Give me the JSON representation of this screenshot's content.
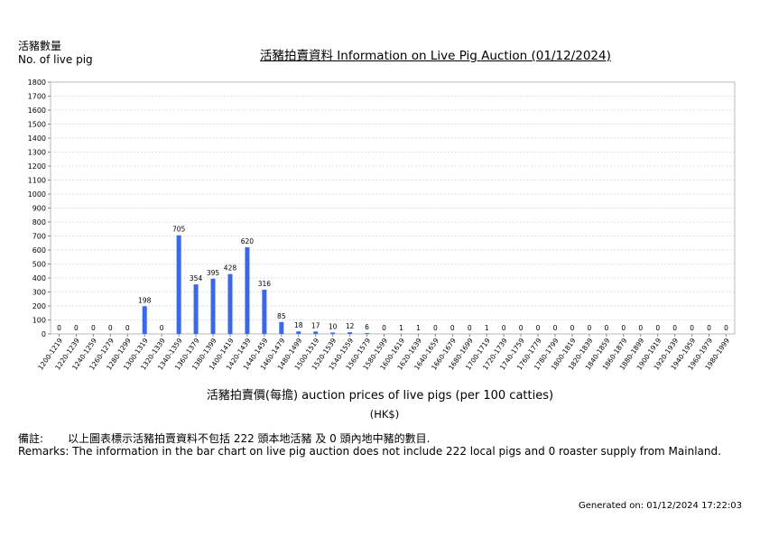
{
  "page": {
    "ylabel_zh": "活豬數量",
    "ylabel_en": "No. of live pig",
    "title": "活豬拍賣資料 Information on Live Pig Auction (01/12/2024)",
    "xlabel": "活豬拍賣價(每擔) auction prices of live pigs (per 100 catties)",
    "unit": "(HK$)",
    "remarks_zh_head": "備註:",
    "remarks_zh": "以上圖表標示活豬拍賣資料不包括 222 頭本地活豬 及 0 頭內地中豬的數目.",
    "remarks_en": "Remarks: The information in the bar chart on live pig auction does not include 222 local pigs and 0 roaster supply from Mainland.",
    "generated": "Generated on: 01/12/2024 17:22:03"
  },
  "chart_data": {
    "type": "bar",
    "title": "活豬拍賣資料 Information on Live Pig Auction (01/12/2024)",
    "xlabel": "活豬拍賣價(每擔) auction prices of live pigs (per 100 catties)",
    "ylabel": "活豬數量 No. of live pig",
    "ylim": [
      0,
      1800
    ],
    "yticks": [
      0,
      100,
      200,
      300,
      400,
      500,
      600,
      700,
      800,
      900,
      1000,
      1100,
      1200,
      1300,
      1400,
      1500,
      1600,
      1700,
      1800
    ],
    "grid": true,
    "bar_color": "#3b68e8",
    "categories": [
      "1200-1219",
      "1220-1239",
      "1240-1259",
      "1260-1279",
      "1280-1299",
      "1300-1319",
      "1320-1339",
      "1340-1359",
      "1360-1379",
      "1380-1399",
      "1400-1419",
      "1420-1439",
      "1440-1459",
      "1460-1479",
      "1480-1499",
      "1500-1519",
      "1520-1539",
      "1540-1559",
      "1560-1579",
      "1580-1599",
      "1600-1619",
      "1620-1639",
      "1640-1659",
      "1660-1679",
      "1680-1699",
      "1700-1719",
      "1720-1739",
      "1740-1759",
      "1760-1779",
      "1780-1799",
      "1800-1819",
      "1820-1839",
      "1840-1859",
      "1860-1879",
      "1880-1899",
      "1900-1919",
      "1920-1939",
      "1940-1959",
      "1960-1979",
      "1980-1999"
    ],
    "values": [
      0,
      0,
      0,
      0,
      0,
      198,
      0,
      705,
      354,
      395,
      428,
      620,
      316,
      85,
      18,
      17,
      10,
      12,
      6,
      0,
      1,
      1,
      0,
      0,
      0,
      1,
      0,
      0,
      0,
      0,
      0,
      0,
      0,
      0,
      0,
      0,
      0,
      0,
      0,
      0
    ]
  }
}
